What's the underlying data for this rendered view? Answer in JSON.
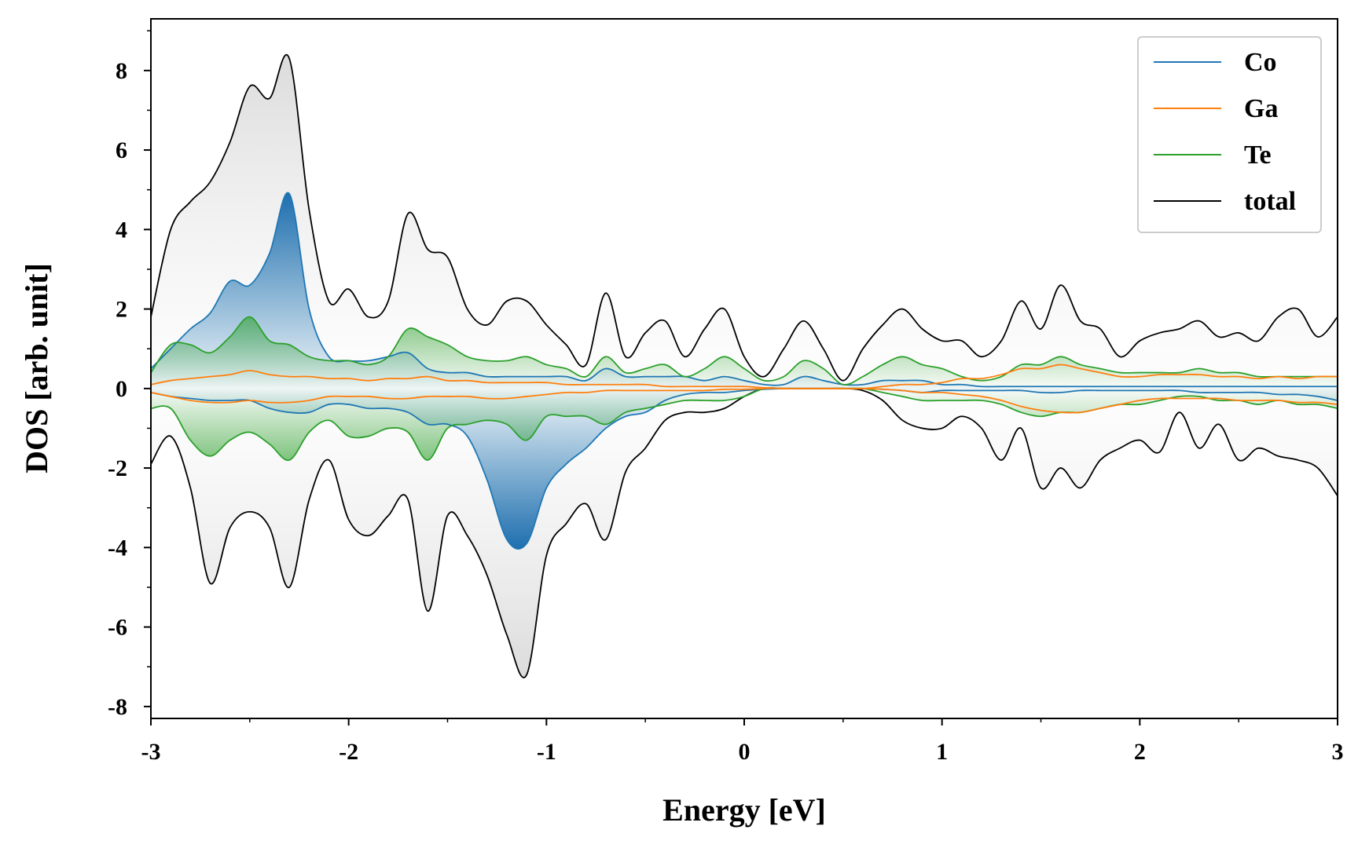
{
  "chart_data": {
    "type": "area",
    "title": "",
    "xlabel": "Energy [eV]",
    "ylabel": "DOS [arb. unit]",
    "xlim": [
      -3,
      3
    ],
    "ylim": [
      -8.3,
      9.3
    ],
    "x_ticks": [
      -3,
      -2,
      -1,
      0,
      1,
      2,
      3
    ],
    "x_tick_labels": [
      "-3",
      "-2",
      "-1",
      "0",
      "1",
      "2",
      "3"
    ],
    "y_ticks": [
      -8,
      -6,
      -4,
      -2,
      0,
      2,
      4,
      6,
      8
    ],
    "y_tick_labels": [
      "-8",
      "-6",
      "-4",
      "-2",
      "0",
      "2",
      "4",
      "6",
      "8"
    ],
    "grid": false,
    "legend_position": "top-right",
    "x": [
      -3.0,
      -2.9,
      -2.8,
      -2.7,
      -2.6,
      -2.5,
      -2.4,
      -2.3,
      -2.2,
      -2.1,
      -2.0,
      -1.9,
      -1.8,
      -1.7,
      -1.6,
      -1.5,
      -1.4,
      -1.3,
      -1.2,
      -1.1,
      -1.0,
      -0.9,
      -0.8,
      -0.7,
      -0.6,
      -0.5,
      -0.4,
      -0.3,
      -0.2,
      -0.1,
      0.0,
      0.1,
      0.2,
      0.3,
      0.4,
      0.5,
      0.6,
      0.7,
      0.8,
      0.9,
      1.0,
      1.1,
      1.2,
      1.3,
      1.4,
      1.5,
      1.6,
      1.7,
      1.8,
      1.9,
      2.0,
      2.1,
      2.2,
      2.3,
      2.4,
      2.5,
      2.6,
      2.7,
      2.8,
      2.9,
      3.0
    ],
    "series": [
      {
        "name": "Co",
        "color": "#1f77b4",
        "spin_up": [
          0.5,
          1.0,
          1.5,
          1.9,
          2.7,
          2.6,
          3.4,
          4.9,
          2.0,
          0.8,
          0.7,
          0.7,
          0.8,
          0.9,
          0.5,
          0.4,
          0.4,
          0.3,
          0.3,
          0.3,
          0.3,
          0.3,
          0.2,
          0.5,
          0.3,
          0.3,
          0.3,
          0.3,
          0.2,
          0.3,
          0.2,
          0.1,
          0.1,
          0.3,
          0.2,
          0.1,
          0.1,
          0.2,
          0.2,
          0.2,
          0.1,
          0.1,
          0.05,
          0.05,
          0.05,
          0.05,
          0.05,
          0.05,
          0.05,
          0.05,
          0.05,
          0.05,
          0.05,
          0.05,
          0.05,
          0.05,
          0.05,
          0.05,
          0.05,
          0.05,
          0.05
        ],
        "spin_down": [
          -0.1,
          -0.2,
          -0.25,
          -0.3,
          -0.3,
          -0.3,
          -0.5,
          -0.6,
          -0.6,
          -0.4,
          -0.4,
          -0.5,
          -0.5,
          -0.6,
          -0.9,
          -0.9,
          -1.2,
          -2.3,
          -3.8,
          -3.9,
          -2.5,
          -1.9,
          -1.5,
          -1.0,
          -0.7,
          -0.6,
          -0.3,
          -0.15,
          -0.1,
          -0.1,
          -0.05,
          -0.02,
          0,
          0,
          0,
          0,
          0,
          -0.02,
          -0.05,
          -0.1,
          -0.05,
          -0.05,
          -0.05,
          -0.05,
          -0.05,
          -0.1,
          -0.1,
          -0.05,
          -0.05,
          -0.05,
          -0.05,
          -0.05,
          -0.05,
          -0.1,
          -0.1,
          -0.1,
          -0.1,
          -0.15,
          -0.15,
          -0.2,
          -0.3
        ]
      },
      {
        "name": "Ga",
        "color": "#ff7f0e",
        "spin_up": [
          0.1,
          0.2,
          0.25,
          0.3,
          0.35,
          0.45,
          0.35,
          0.3,
          0.3,
          0.25,
          0.25,
          0.2,
          0.25,
          0.25,
          0.3,
          0.2,
          0.2,
          0.15,
          0.15,
          0.15,
          0.15,
          0.1,
          0.1,
          0.1,
          0.1,
          0.1,
          0.05,
          0.05,
          0.05,
          0.05,
          0.05,
          0.02,
          0,
          0,
          0,
          0,
          0,
          0.05,
          0.1,
          0.1,
          0.15,
          0.25,
          0.25,
          0.35,
          0.5,
          0.5,
          0.6,
          0.5,
          0.4,
          0.3,
          0.3,
          0.35,
          0.35,
          0.35,
          0.3,
          0.3,
          0.25,
          0.3,
          0.25,
          0.3,
          0.3
        ],
        "spin_down": [
          -0.1,
          -0.2,
          -0.3,
          -0.35,
          -0.35,
          -0.3,
          -0.35,
          -0.35,
          -0.3,
          -0.2,
          -0.2,
          -0.2,
          -0.25,
          -0.25,
          -0.2,
          -0.2,
          -0.2,
          -0.25,
          -0.25,
          -0.2,
          -0.15,
          -0.1,
          -0.1,
          -0.05,
          -0.05,
          -0.05,
          -0.05,
          -0.05,
          -0.05,
          -0.02,
          -0.02,
          0,
          0,
          0,
          0,
          0,
          0,
          -0.02,
          -0.05,
          -0.1,
          -0.1,
          -0.15,
          -0.2,
          -0.3,
          -0.45,
          -0.55,
          -0.6,
          -0.6,
          -0.5,
          -0.4,
          -0.3,
          -0.25,
          -0.25,
          -0.25,
          -0.25,
          -0.3,
          -0.3,
          -0.3,
          -0.35,
          -0.35,
          -0.4
        ]
      },
      {
        "name": "Te",
        "color": "#2ca02c",
        "spin_up": [
          0.4,
          1.1,
          1.1,
          0.9,
          1.3,
          1.8,
          1.2,
          1.1,
          0.8,
          0.7,
          0.7,
          0.6,
          0.8,
          1.5,
          1.3,
          1.1,
          0.8,
          0.7,
          0.7,
          0.8,
          0.6,
          0.5,
          0.3,
          0.8,
          0.4,
          0.5,
          0.6,
          0.3,
          0.5,
          0.8,
          0.5,
          0.2,
          0.3,
          0.7,
          0.5,
          0.1,
          0.3,
          0.6,
          0.8,
          0.6,
          0.5,
          0.3,
          0.2,
          0.3,
          0.6,
          0.6,
          0.8,
          0.6,
          0.5,
          0.4,
          0.4,
          0.4,
          0.4,
          0.5,
          0.4,
          0.4,
          0.3,
          0.3,
          0.3,
          0.3,
          0.3
        ],
        "spin_down": [
          -0.5,
          -0.5,
          -1.3,
          -1.7,
          -1.3,
          -1.1,
          -1.4,
          -1.8,
          -1.1,
          -0.8,
          -1.2,
          -1.2,
          -1.0,
          -1.1,
          -1.8,
          -1.0,
          -0.9,
          -0.8,
          -0.9,
          -1.3,
          -0.7,
          -0.7,
          -0.7,
          -0.9,
          -0.6,
          -0.5,
          -0.4,
          -0.3,
          -0.3,
          -0.3,
          -0.2,
          0,
          0,
          0,
          0,
          0,
          0,
          -0.1,
          -0.2,
          -0.3,
          -0.3,
          -0.3,
          -0.3,
          -0.4,
          -0.6,
          -0.7,
          -0.6,
          -0.6,
          -0.5,
          -0.4,
          -0.4,
          -0.3,
          -0.2,
          -0.2,
          -0.3,
          -0.3,
          -0.4,
          -0.3,
          -0.4,
          -0.4,
          -0.5
        ]
      },
      {
        "name": "total",
        "color": "#000000",
        "spin_up": [
          1.8,
          4.0,
          4.7,
          5.2,
          6.2,
          7.6,
          7.3,
          8.3,
          4.5,
          2.2,
          2.5,
          1.8,
          2.2,
          4.4,
          3.5,
          3.3,
          2.0,
          1.6,
          2.2,
          2.2,
          1.6,
          1.1,
          0.6,
          2.4,
          0.8,
          1.4,
          1.7,
          0.8,
          1.5,
          2.0,
          0.8,
          0.3,
          1.0,
          1.7,
          1.0,
          0.2,
          1.0,
          1.6,
          2.0,
          1.5,
          1.2,
          1.2,
          0.8,
          1.2,
          2.2,
          1.5,
          2.6,
          1.7,
          1.5,
          0.8,
          1.2,
          1.4,
          1.5,
          1.7,
          1.3,
          1.4,
          1.2,
          1.8,
          2.0,
          1.3,
          1.8
        ],
        "spin_down": [
          -1.9,
          -1.2,
          -2.5,
          -4.9,
          -3.5,
          -3.1,
          -3.5,
          -5.0,
          -2.8,
          -1.8,
          -3.3,
          -3.7,
          -3.2,
          -2.8,
          -5.6,
          -3.2,
          -3.7,
          -4.7,
          -6.2,
          -7.2,
          -4.2,
          -3.4,
          -2.9,
          -3.8,
          -2.1,
          -1.5,
          -0.8,
          -0.6,
          -0.6,
          -0.5,
          -0.2,
          0,
          0,
          0,
          0,
          0,
          -0.05,
          -0.3,
          -0.8,
          -1.0,
          -1.0,
          -0.7,
          -1.0,
          -1.8,
          -1.0,
          -2.5,
          -2.0,
          -2.5,
          -1.8,
          -1.5,
          -1.3,
          -1.6,
          -0.6,
          -1.5,
          -0.9,
          -1.8,
          -1.5,
          -1.7,
          -1.8,
          -2.0,
          -2.7
        ]
      }
    ]
  }
}
